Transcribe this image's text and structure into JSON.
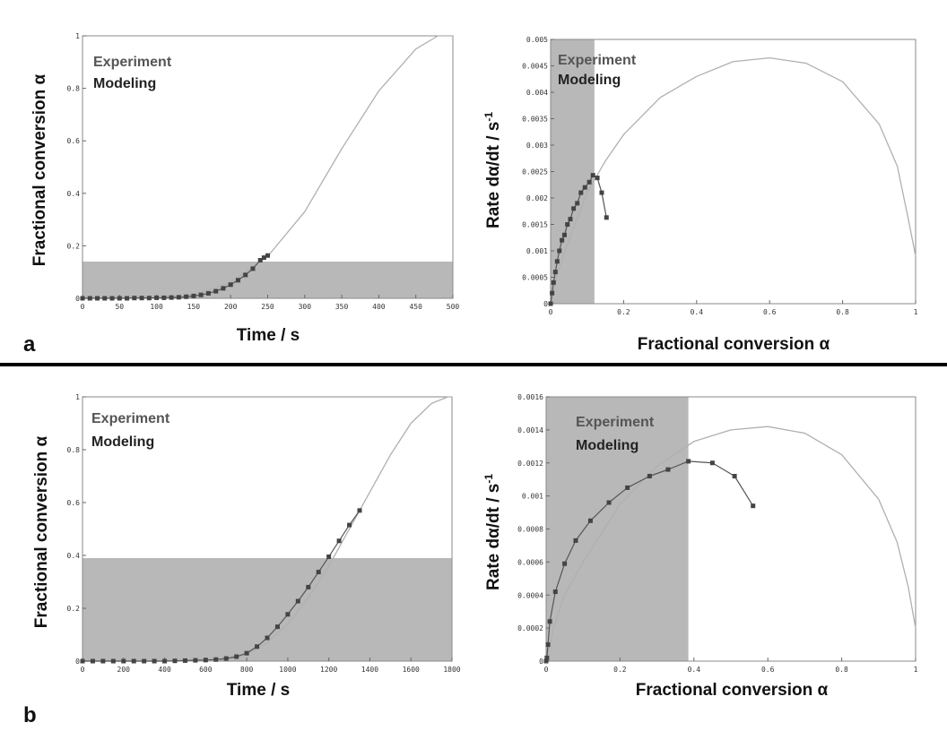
{
  "rows": [
    {
      "label": "a"
    },
    {
      "label": "b"
    }
  ],
  "chart_data": [
    {
      "type": "line",
      "xlabel": "Time / s",
      "ylabel": "Fractional conversion α",
      "xlim": [
        0,
        500
      ],
      "ylim": [
        0,
        1
      ],
      "xticks": [
        "0",
        "50",
        "100",
        "150",
        "200",
        "250",
        "300",
        "350",
        "400",
        "450",
        "500"
      ],
      "yticks": [
        "0",
        "0.2",
        "0.4",
        "0.6",
        "0.8",
        "1"
      ],
      "legend": [
        "Experiment",
        "Modeling"
      ],
      "legend_position": "top-left",
      "shaded_region": {
        "x": [
          0,
          500
        ],
        "y": [
          0,
          0.14
        ]
      },
      "colors": {
        "shade": "#b8b8b8",
        "model": "#b0b0b0",
        "experiment": "#555555",
        "marker": "#444444"
      },
      "series": [
        {
          "name": "Modeling",
          "points": [
            [
              0,
              0
            ],
            [
              50,
              0.002
            ],
            [
              100,
              0.005
            ],
            [
              150,
              0.015
            ],
            [
              200,
              0.06
            ],
            [
              250,
              0.16
            ],
            [
              300,
              0.33
            ],
            [
              350,
              0.57
            ],
            [
              400,
              0.79
            ],
            [
              450,
              0.95
            ],
            [
              480,
              1.0
            ],
            [
              500,
              1.0
            ]
          ]
        },
        {
          "name": "Experiment",
          "points": [
            [
              0,
              0
            ],
            [
              10,
              0
            ],
            [
              20,
              0
            ],
            [
              30,
              0
            ],
            [
              40,
              0
            ],
            [
              50,
              0
            ],
            [
              60,
              0
            ],
            [
              70,
              0.001
            ],
            [
              80,
              0.001
            ],
            [
              90,
              0.001
            ],
            [
              100,
              0.002
            ],
            [
              110,
              0.002
            ],
            [
              120,
              0.003
            ],
            [
              130,
              0.004
            ],
            [
              140,
              0.006
            ],
            [
              150,
              0.009
            ],
            [
              160,
              0.013
            ],
            [
              170,
              0.019
            ],
            [
              180,
              0.027
            ],
            [
              190,
              0.038
            ],
            [
              200,
              0.052
            ],
            [
              210,
              0.069
            ],
            [
              220,
              0.089
            ],
            [
              230,
              0.113
            ],
            [
              240,
              0.145
            ],
            [
              245,
              0.155
            ],
            [
              250,
              0.163
            ]
          ]
        }
      ]
    },
    {
      "type": "line",
      "xlabel": "Fractional conversion α",
      "ylabel": "Rate dα/dt / s-1",
      "xlim": [
        0,
        1
      ],
      "ylim": [
        0,
        0.005
      ],
      "xticks": [
        "0",
        "0.2",
        "0.4",
        "0.6",
        "0.8",
        "1"
      ],
      "yticks": [
        "0",
        "0.0005",
        "0.001",
        "0.0015",
        "0.002",
        "0.0025",
        "0.003",
        "0.0035",
        "0.004",
        "0.0045",
        "0.005"
      ],
      "legend": [
        "Experiment",
        "Modeling"
      ],
      "legend_position": "top-left",
      "shaded_region": {
        "x": [
          0,
          0.12
        ],
        "y": [
          0,
          0.005
        ]
      },
      "colors": {
        "shade": "#b8b8b8",
        "model": "#b0b0b0",
        "experiment": "#555555",
        "marker": "#444444"
      },
      "series": [
        {
          "name": "Modeling",
          "points": [
            [
              0,
              0
            ],
            [
              0.02,
              0.0006
            ],
            [
              0.05,
              0.0012
            ],
            [
              0.1,
              0.0021
            ],
            [
              0.15,
              0.0027
            ],
            [
              0.2,
              0.0032
            ],
            [
              0.3,
              0.0039
            ],
            [
              0.4,
              0.0043
            ],
            [
              0.5,
              0.00458
            ],
            [
              0.6,
              0.00465
            ],
            [
              0.7,
              0.00455
            ],
            [
              0.8,
              0.0042
            ],
            [
              0.9,
              0.0034
            ],
            [
              0.95,
              0.0026
            ],
            [
              0.98,
              0.0016
            ],
            [
              1.0,
              0.0009
            ]
          ]
        },
        {
          "name": "Experiment",
          "points": [
            [
              0,
              0
            ],
            [
              0.004,
              0.0002
            ],
            [
              0.008,
              0.0004
            ],
            [
              0.013,
              0.0006
            ],
            [
              0.018,
              0.0008
            ],
            [
              0.024,
              0.001
            ],
            [
              0.031,
              0.0012
            ],
            [
              0.038,
              0.0013
            ],
            [
              0.046,
              0.0015
            ],
            [
              0.054,
              0.0016
            ],
            [
              0.063,
              0.0018
            ],
            [
              0.073,
              0.0019
            ],
            [
              0.083,
              0.0021
            ],
            [
              0.094,
              0.0022
            ],
            [
              0.106,
              0.0023
            ],
            [
              0.116,
              0.00243
            ],
            [
              0.128,
              0.00238
            ],
            [
              0.14,
              0.0021
            ],
            [
              0.153,
              0.00163
            ]
          ]
        }
      ]
    },
    {
      "type": "line",
      "xlabel": "Time / s",
      "ylabel": "Fractional conversion α",
      "xlim": [
        0,
        1800
      ],
      "ylim": [
        0,
        1
      ],
      "xticks": [
        "0",
        "200",
        "400",
        "600",
        "800",
        "1000",
        "1200",
        "1400",
        "1600",
        "1800"
      ],
      "yticks": [
        "0",
        "0.2",
        "0.4",
        "0.6",
        "0.8",
        "1"
      ],
      "legend": [
        "Experiment",
        "Modeling"
      ],
      "legend_position": "top-left",
      "shaded_region": {
        "x": [
          0,
          1800
        ],
        "y": [
          0,
          0.39
        ]
      },
      "colors": {
        "shade": "#b8b8b8",
        "model": "#b0b0b0",
        "experiment": "#555555",
        "marker": "#444444"
      },
      "series": [
        {
          "name": "Modeling",
          "points": [
            [
              0,
              0
            ],
            [
              600,
              0.0
            ],
            [
              700,
              0.005
            ],
            [
              800,
              0.025
            ],
            [
              900,
              0.07
            ],
            [
              1000,
              0.14
            ],
            [
              1100,
              0.24
            ],
            [
              1200,
              0.36
            ],
            [
              1300,
              0.5
            ],
            [
              1400,
              0.64
            ],
            [
              1500,
              0.78
            ],
            [
              1600,
              0.9
            ],
            [
              1700,
              0.975
            ],
            [
              1780,
              1.0
            ],
            [
              1800,
              1.0
            ]
          ]
        },
        {
          "name": "Experiment",
          "points": [
            [
              0,
              0
            ],
            [
              50,
              0
            ],
            [
              100,
              0
            ],
            [
              150,
              0
            ],
            [
              200,
              0
            ],
            [
              250,
              0
            ],
            [
              300,
              0
            ],
            [
              350,
              0
            ],
            [
              400,
              0
            ],
            [
              450,
              0.001
            ],
            [
              500,
              0.002
            ],
            [
              550,
              0.003
            ],
            [
              600,
              0.004
            ],
            [
              650,
              0.006
            ],
            [
              700,
              0.01
            ],
            [
              750,
              0.017
            ],
            [
              800,
              0.03
            ],
            [
              850,
              0.055
            ],
            [
              900,
              0.088
            ],
            [
              950,
              0.13
            ],
            [
              1000,
              0.177
            ],
            [
              1050,
              0.227
            ],
            [
              1100,
              0.28
            ],
            [
              1150,
              0.337
            ],
            [
              1200,
              0.395
            ],
            [
              1250,
              0.455
            ],
            [
              1300,
              0.515
            ],
            [
              1350,
              0.57
            ]
          ]
        }
      ]
    },
    {
      "type": "line",
      "xlabel": "Fractional conversion α",
      "ylabel": "Rate dα/dt / s-1",
      "xlim": [
        0,
        1
      ],
      "ylim": [
        0,
        0.0016
      ],
      "xticks": [
        "0",
        "0.2",
        "0.4",
        "0.6",
        "0.8",
        "1"
      ],
      "yticks": [
        "0",
        "0.0002",
        "0.0004",
        "0.0006",
        "0.0008",
        "0.001",
        "0.0012",
        "0.0014",
        "0.0016"
      ],
      "legend": [
        "Experiment",
        "Modeling"
      ],
      "legend_position": "top-left",
      "shaded_region": {
        "x": [
          0,
          0.385
        ],
        "y": [
          0,
          0.0016
        ]
      },
      "colors": {
        "shade": "#b8b8b8",
        "model": "#b0b0b0",
        "experiment": "#555555",
        "marker": "#444444"
      },
      "series": [
        {
          "name": "Modeling",
          "points": [
            [
              0,
              0
            ],
            [
              0.02,
              0.0002
            ],
            [
              0.05,
              0.0004
            ],
            [
              0.1,
              0.0006
            ],
            [
              0.2,
              0.00095
            ],
            [
              0.3,
              0.00118
            ],
            [
              0.4,
              0.00133
            ],
            [
              0.5,
              0.0014
            ],
            [
              0.6,
              0.00142
            ],
            [
              0.7,
              0.00138
            ],
            [
              0.8,
              0.00125
            ],
            [
              0.9,
              0.00098
            ],
            [
              0.95,
              0.00072
            ],
            [
              0.98,
              0.00045
            ],
            [
              1.0,
              0.0002
            ]
          ]
        },
        {
          "name": "Experiment",
          "points": [
            [
              0,
              0
            ],
            [
              0.002,
              2e-05
            ],
            [
              0.005,
              0.0001
            ],
            [
              0.01,
              0.00024
            ],
            [
              0.025,
              0.00042
            ],
            [
              0.05,
              0.00059
            ],
            [
              0.08,
              0.00073
            ],
            [
              0.12,
              0.00085
            ],
            [
              0.17,
              0.00096
            ],
            [
              0.22,
              0.00105
            ],
            [
              0.28,
              0.00112
            ],
            [
              0.33,
              0.00116
            ],
            [
              0.385,
              0.00121
            ],
            [
              0.45,
              0.0012
            ],
            [
              0.51,
              0.00112
            ],
            [
              0.56,
              0.00094
            ]
          ]
        }
      ]
    }
  ]
}
